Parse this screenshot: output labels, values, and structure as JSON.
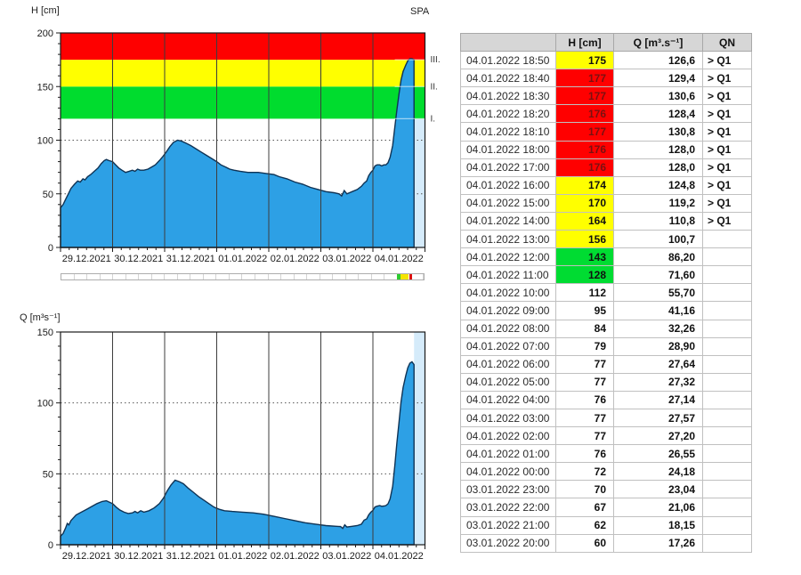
{
  "h_axis_title": "H [cm]",
  "q_axis_title": "Q [m³s⁻¹]",
  "spa_title": "SPA",
  "colors": {
    "area_blue": "#2da0e5",
    "area_outline": "#0f3355",
    "band_green": "#00dc2e",
    "band_yellow": "#ffff00",
    "band_red": "#fe0000",
    "tail_highlight": "#d5ebfa"
  },
  "chart_data": [
    {
      "id": "h",
      "type": "area",
      "title": "SPA",
      "ylabel": "H [cm]",
      "ylim": [
        0,
        200
      ],
      "yticks": [
        0,
        50,
        100,
        150,
        200
      ],
      "y_minor_step": 10,
      "dotted_gridlines": [
        50,
        100
      ],
      "x_labels": [
        "29.12.2021",
        "30.12.2021",
        "31.12.2021",
        "01.01.2022",
        "02.01.2022",
        "03.01.2022",
        "04.01.2022"
      ],
      "x_span_days": 7,
      "data_end_day": 6.79,
      "grid": "vertical-solid, horizontal-dotted",
      "legend_position": "none",
      "bands": [
        {
          "label": "I.",
          "from": 120,
          "to": 150,
          "color": "#00dc2e"
        },
        {
          "label": "II.",
          "from": 150,
          "to": 175,
          "color": "#ffff00"
        },
        {
          "label": "III.",
          "from": 175,
          "to": 200,
          "color": "#fe0000"
        }
      ],
      "area_color": "#2da0e5",
      "line_color": "#0f3355",
      "tail_color": "#d5ebfa",
      "series": [
        {
          "name": "H",
          "points": [
            [
              0,
              37
            ],
            [
              0.05,
              40
            ],
            [
              0.1,
              45
            ],
            [
              0.15,
              50
            ],
            [
              0.2,
              55
            ],
            [
              0.27,
              59
            ],
            [
              0.33,
              62
            ],
            [
              0.38,
              61
            ],
            [
              0.43,
              64
            ],
            [
              0.47,
              63
            ],
            [
              0.52,
              66
            ],
            [
              0.58,
              68
            ],
            [
              0.65,
              71
            ],
            [
              0.72,
              74
            ],
            [
              0.78,
              78
            ],
            [
              0.84,
              81
            ],
            [
              0.88,
              82
            ],
            [
              0.93,
              81
            ],
            [
              1,
              80
            ],
            [
              1.06,
              77
            ],
            [
              1.12,
              74
            ],
            [
              1.18,
              72
            ],
            [
              1.25,
              70
            ],
            [
              1.32,
              71
            ],
            [
              1.38,
              72
            ],
            [
              1.43,
              71
            ],
            [
              1.48,
              73
            ],
            [
              1.53,
              72
            ],
            [
              1.6,
              72
            ],
            [
              1.68,
              73
            ],
            [
              1.75,
              75
            ],
            [
              1.82,
              77
            ],
            [
              1.9,
              81
            ],
            [
              1.97,
              85
            ],
            [
              2.03,
              89
            ],
            [
              2.1,
              94
            ],
            [
              2.17,
              98
            ],
            [
              2.25,
              100
            ],
            [
              2.33,
              99
            ],
            [
              2.42,
              97
            ],
            [
              2.5,
              95
            ],
            [
              2.6,
              92
            ],
            [
              2.7,
              89
            ],
            [
              2.8,
              86
            ],
            [
              2.9,
              83
            ],
            [
              3,
              80
            ],
            [
              3.08,
              77
            ],
            [
              3.17,
              75
            ],
            [
              3.25,
              73
            ],
            [
              3.33,
              72
            ],
            [
              3.45,
              71
            ],
            [
              3.6,
              70
            ],
            [
              3.8,
              70
            ],
            [
              3.95,
              69
            ],
            [
              4.1,
              68
            ],
            [
              4.2,
              66
            ],
            [
              4.35,
              64
            ],
            [
              4.5,
              61
            ],
            [
              4.65,
              59
            ],
            [
              4.8,
              56
            ],
            [
              4.95,
              54
            ],
            [
              5.1,
              52
            ],
            [
              5.25,
              51
            ],
            [
              5.35,
              50
            ],
            [
              5.4,
              48
            ],
            [
              5.45,
              53
            ],
            [
              5.5,
              50
            ],
            [
              5.6,
              52
            ],
            [
              5.7,
              54
            ],
            [
              5.78,
              57
            ],
            [
              5.83,
              60
            ],
            [
              5.88,
              62
            ],
            [
              5.92,
              67
            ],
            [
              5.96,
              70
            ],
            [
              6,
              72
            ],
            [
              6.04,
              76
            ],
            [
              6.08,
              77
            ],
            [
              6.13,
              77
            ],
            [
              6.17,
              76
            ],
            [
              6.21,
              77
            ],
            [
              6.25,
              77
            ],
            [
              6.29,
              79
            ],
            [
              6.33,
              84
            ],
            [
              6.38,
              95
            ],
            [
              6.42,
              112
            ],
            [
              6.46,
              128
            ],
            [
              6.5,
              143
            ],
            [
              6.54,
              156
            ],
            [
              6.58,
              164
            ],
            [
              6.63,
              170
            ],
            [
              6.67,
              174
            ],
            [
              6.71,
              176
            ],
            [
              6.75,
              176
            ],
            [
              6.79,
              175
            ]
          ]
        }
      ]
    },
    {
      "id": "q",
      "type": "area",
      "title": "",
      "ylabel": "Q [m³s⁻¹]",
      "ylim": [
        0,
        150
      ],
      "yticks": [
        0,
        50,
        100,
        150
      ],
      "y_minor_step": 10,
      "dotted_gridlines": [
        50,
        100
      ],
      "x_labels": [
        "29.12.2021",
        "30.12.2021",
        "31.12.2021",
        "01.01.2022",
        "02.01.2022",
        "03.01.2022",
        "04.01.2022"
      ],
      "x_span_days": 7,
      "data_end_day": 6.79,
      "grid": "vertical-solid, horizontal-dotted",
      "legend_position": "none",
      "area_color": "#2da0e5",
      "line_color": "#0f3355",
      "tail_color": "#d5ebfa",
      "series": [
        {
          "name": "Q",
          "points": [
            [
              0,
              6
            ],
            [
              0.05,
              8
            ],
            [
              0.1,
              12
            ],
            [
              0.13,
              15
            ],
            [
              0.16,
              14
            ],
            [
              0.2,
              17
            ],
            [
              0.25,
              19
            ],
            [
              0.3,
              21
            ],
            [
              0.4,
              23
            ],
            [
              0.5,
              25
            ],
            [
              0.6,
              27
            ],
            [
              0.7,
              29
            ],
            [
              0.8,
              30.5
            ],
            [
              0.88,
              31
            ],
            [
              0.94,
              30
            ],
            [
              1,
              29
            ],
            [
              1.07,
              26.5
            ],
            [
              1.14,
              24.5
            ],
            [
              1.22,
              23
            ],
            [
              1.3,
              22
            ],
            [
              1.38,
              22.5
            ],
            [
              1.43,
              23.5
            ],
            [
              1.48,
              22.5
            ],
            [
              1.54,
              24
            ],
            [
              1.6,
              23
            ],
            [
              1.7,
              24
            ],
            [
              1.8,
              26
            ],
            [
              1.9,
              29
            ],
            [
              1.98,
              33
            ],
            [
              2.05,
              38
            ],
            [
              2.12,
              42
            ],
            [
              2.2,
              45.5
            ],
            [
              2.28,
              44.5
            ],
            [
              2.36,
              43
            ],
            [
              2.45,
              40
            ],
            [
              2.55,
              37
            ],
            [
              2.65,
              34
            ],
            [
              2.75,
              31.5
            ],
            [
              2.85,
              29
            ],
            [
              2.95,
              26.5
            ],
            [
              3.05,
              25
            ],
            [
              3.15,
              24
            ],
            [
              3.3,
              23.5
            ],
            [
              3.5,
              23
            ],
            [
              3.7,
              22.5
            ],
            [
              3.9,
              21.5
            ],
            [
              4.1,
              20
            ],
            [
              4.3,
              18.5
            ],
            [
              4.5,
              17
            ],
            [
              4.7,
              15.5
            ],
            [
              4.9,
              14.5
            ],
            [
              5.1,
              13.5
            ],
            [
              5.3,
              13
            ],
            [
              5.38,
              12.8
            ],
            [
              5.42,
              11.5
            ],
            [
              5.46,
              14
            ],
            [
              5.5,
              12.5
            ],
            [
              5.6,
              13
            ],
            [
              5.7,
              13.5
            ],
            [
              5.78,
              14.5
            ],
            [
              5.83,
              17.3
            ],
            [
              5.88,
              18.2
            ],
            [
              5.92,
              21.1
            ],
            [
              5.96,
              23
            ],
            [
              6,
              24.2
            ],
            [
              6.04,
              26.6
            ],
            [
              6.08,
              27.2
            ],
            [
              6.13,
              27.6
            ],
            [
              6.17,
              27.1
            ],
            [
              6.21,
              27.3
            ],
            [
              6.25,
              27.6
            ],
            [
              6.29,
              28.9
            ],
            [
              6.33,
              32.3
            ],
            [
              6.38,
              41.2
            ],
            [
              6.42,
              55.7
            ],
            [
              6.46,
              71.6
            ],
            [
              6.5,
              86.2
            ],
            [
              6.54,
              100.7
            ],
            [
              6.58,
              110.8
            ],
            [
              6.63,
              119.2
            ],
            [
              6.67,
              124.8
            ],
            [
              6.71,
              128
            ],
            [
              6.75,
              129
            ],
            [
              6.79,
              127
            ]
          ]
        }
      ]
    }
  ],
  "navigator": {
    "segments": 28,
    "markers": [
      {
        "color": "#2ecc2e",
        "from": 0.9267,
        "to": 0.9364
      },
      {
        "color": "#f5e400",
        "from": 0.9364,
        "to": 0.9572
      },
      {
        "color": "#dd1111",
        "from": 0.9609,
        "to": 0.967
      }
    ]
  },
  "table": {
    "headers": [
      "",
      "H [cm]",
      "Q [m³.s⁻¹]",
      "QN"
    ],
    "rows": [
      {
        "time": "04.01.2022 18:50",
        "h": "175",
        "q": "126,6",
        "qn": "> Q1",
        "level": "yellow"
      },
      {
        "time": "04.01.2022 18:40",
        "h": "177",
        "q": "129,4",
        "qn": "> Q1",
        "level": "red"
      },
      {
        "time": "04.01.2022 18:30",
        "h": "177",
        "q": "130,6",
        "qn": "> Q1",
        "level": "red"
      },
      {
        "time": "04.01.2022 18:20",
        "h": "176",
        "q": "128,4",
        "qn": "> Q1",
        "level": "red"
      },
      {
        "time": "04.01.2022 18:10",
        "h": "177",
        "q": "130,8",
        "qn": "> Q1",
        "level": "red"
      },
      {
        "time": "04.01.2022 18:00",
        "h": "176",
        "q": "128,0",
        "qn": "> Q1",
        "level": "red"
      },
      {
        "time": "04.01.2022 17:00",
        "h": "176",
        "q": "128,0",
        "qn": "> Q1",
        "level": "red"
      },
      {
        "time": "04.01.2022 16:00",
        "h": "174",
        "q": "124,8",
        "qn": "> Q1",
        "level": "yellow"
      },
      {
        "time": "04.01.2022 15:00",
        "h": "170",
        "q": "119,2",
        "qn": "> Q1",
        "level": "yellow"
      },
      {
        "time": "04.01.2022 14:00",
        "h": "164",
        "q": "110,8",
        "qn": "> Q1",
        "level": "yellow"
      },
      {
        "time": "04.01.2022 13:00",
        "h": "156",
        "q": "100,7",
        "qn": "",
        "level": "yellow"
      },
      {
        "time": "04.01.2022 12:00",
        "h": "143",
        "q": "86,20",
        "qn": "",
        "level": "green"
      },
      {
        "time": "04.01.2022 11:00",
        "h": "128",
        "q": "71,60",
        "qn": "",
        "level": "green"
      },
      {
        "time": "04.01.2022 10:00",
        "h": "112",
        "q": "55,70",
        "qn": "",
        "level": ""
      },
      {
        "time": "04.01.2022 09:00",
        "h": "95",
        "q": "41,16",
        "qn": "",
        "level": ""
      },
      {
        "time": "04.01.2022 08:00",
        "h": "84",
        "q": "32,26",
        "qn": "",
        "level": ""
      },
      {
        "time": "04.01.2022 07:00",
        "h": "79",
        "q": "28,90",
        "qn": "",
        "level": ""
      },
      {
        "time": "04.01.2022 06:00",
        "h": "77",
        "q": "27,64",
        "qn": "",
        "level": ""
      },
      {
        "time": "04.01.2022 05:00",
        "h": "77",
        "q": "27,32",
        "qn": "",
        "level": ""
      },
      {
        "time": "04.01.2022 04:00",
        "h": "76",
        "q": "27,14",
        "qn": "",
        "level": ""
      },
      {
        "time": "04.01.2022 03:00",
        "h": "77",
        "q": "27,57",
        "qn": "",
        "level": ""
      },
      {
        "time": "04.01.2022 02:00",
        "h": "77",
        "q": "27,20",
        "qn": "",
        "level": ""
      },
      {
        "time": "04.01.2022 01:00",
        "h": "76",
        "q": "26,55",
        "qn": "",
        "level": ""
      },
      {
        "time": "04.01.2022 00:00",
        "h": "72",
        "q": "24,18",
        "qn": "",
        "level": ""
      },
      {
        "time": "03.01.2022 23:00",
        "h": "70",
        "q": "23,04",
        "qn": "",
        "level": ""
      },
      {
        "time": "03.01.2022 22:00",
        "h": "67",
        "q": "21,06",
        "qn": "",
        "level": ""
      },
      {
        "time": "03.01.2022 21:00",
        "h": "62",
        "q": "18,15",
        "qn": "",
        "level": ""
      },
      {
        "time": "03.01.2022 20:00",
        "h": "60",
        "q": "17,26",
        "qn": "",
        "level": ""
      }
    ]
  }
}
